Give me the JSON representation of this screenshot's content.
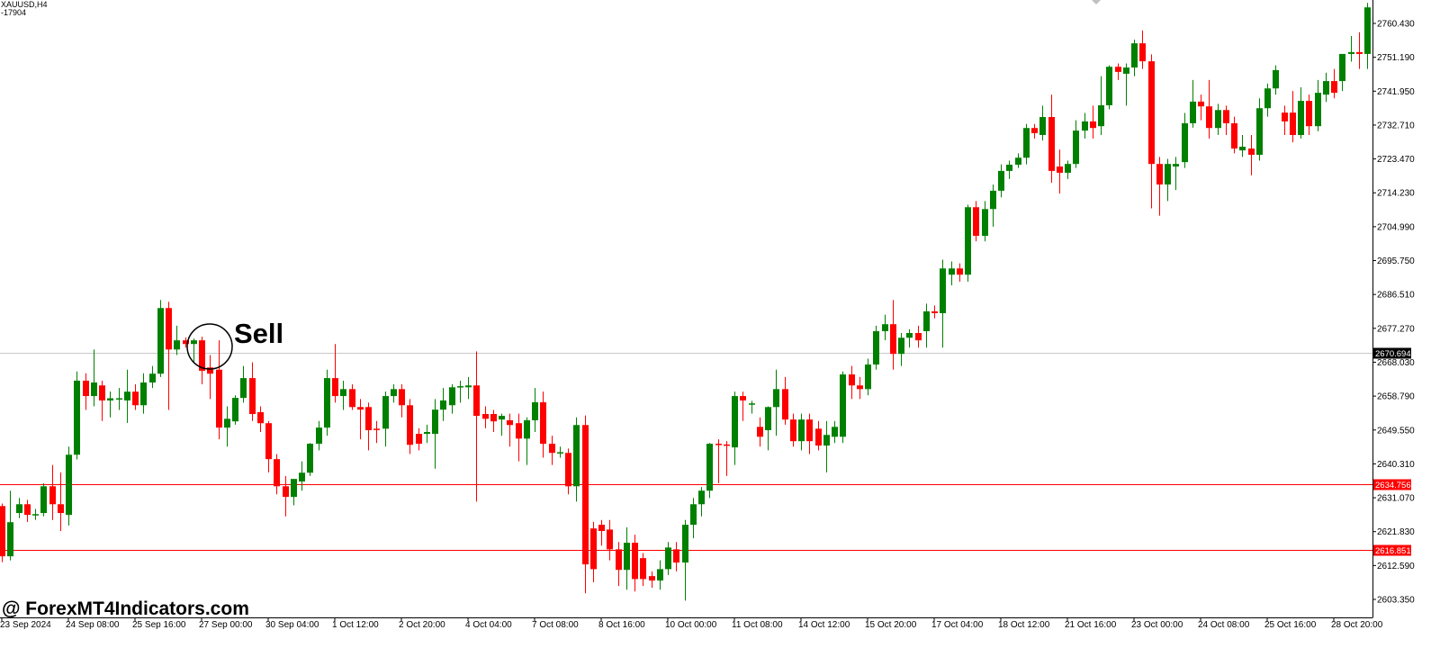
{
  "chart_data": {
    "type": "candlestick",
    "title": "XAUUSD,H4",
    "subtitle": "-17904",
    "annotation": "Sell",
    "watermark": "@ ForexMT4Indicators.com",
    "up_color": "#008000",
    "down_color": "#ff0000",
    "grid": false,
    "ylim": [
      2598.44,
      2766.81
    ],
    "yticks": [
      {
        "value": 2760.43,
        "label": "2760.430"
      },
      {
        "value": 2751.19,
        "label": "2751.190"
      },
      {
        "value": 2741.95,
        "label": "2741.950"
      },
      {
        "value": 2732.71,
        "label": "2732.710"
      },
      {
        "value": 2723.47,
        "label": "2723.470"
      },
      {
        "value": 2714.23,
        "label": "2714.230"
      },
      {
        "value": 2704.99,
        "label": "2704.990"
      },
      {
        "value": 2695.75,
        "label": "2695.750"
      },
      {
        "value": 2686.51,
        "label": "2686.510"
      },
      {
        "value": 2677.27,
        "label": "2677.270"
      },
      {
        "value": 2668.03,
        "label": "2668.030"
      },
      {
        "value": 2658.79,
        "label": "2658.790"
      },
      {
        "value": 2649.55,
        "label": "2649.550"
      },
      {
        "value": 2640.31,
        "label": "2640.310"
      },
      {
        "value": 2631.07,
        "label": "2631.070"
      },
      {
        "value": 2621.83,
        "label": "2621.830"
      },
      {
        "value": 2612.59,
        "label": "2612.590"
      },
      {
        "value": 2603.35,
        "label": "2603.350"
      }
    ],
    "price_lines": [
      {
        "value": 2670.694,
        "color": "#c8c8c8",
        "label_bg": "#000000"
      },
      {
        "value": 2634.756,
        "color": "#ff0000",
        "label_bg": "#ff0000"
      },
      {
        "value": 2616.851,
        "color": "#ff0000",
        "label_bg": "#ff0000"
      }
    ],
    "categories": [
      "23 Sep 2024",
      null,
      null,
      null,
      null,
      null,
      null,
      null,
      "24 Sep 08:00",
      null,
      null,
      null,
      null,
      null,
      null,
      null,
      "25 Sep 16:00",
      null,
      null,
      null,
      null,
      null,
      null,
      null,
      "27 Sep 00:00",
      null,
      null,
      null,
      null,
      null,
      null,
      null,
      "30 Sep 04:00",
      null,
      null,
      null,
      null,
      null,
      null,
      null,
      "1 Oct 12:00",
      null,
      null,
      null,
      null,
      null,
      null,
      null,
      "2 Oct 20:00",
      null,
      null,
      null,
      null,
      null,
      null,
      null,
      "4 Oct 04:00",
      null,
      null,
      null,
      null,
      null,
      null,
      null,
      "7 Oct 08:00",
      null,
      null,
      null,
      null,
      null,
      null,
      null,
      "8 Oct 16:00",
      null,
      null,
      null,
      null,
      null,
      null,
      null,
      "10 Oct 00:00",
      null,
      null,
      null,
      null,
      null,
      null,
      null,
      "11 Oct 08:00",
      null,
      null,
      null,
      null,
      null,
      null,
      null,
      "14 Oct 12:00",
      null,
      null,
      null,
      null,
      null,
      null,
      null,
      "15 Oct 20:00",
      null,
      null,
      null,
      null,
      null,
      null,
      null,
      "17 Oct 04:00",
      null,
      null,
      null,
      null,
      null,
      null,
      null,
      "18 Oct 12:00",
      null,
      null,
      null,
      null,
      null,
      null,
      null,
      "21 Oct 16:00",
      null,
      null,
      null,
      null,
      null,
      null,
      null,
      "23 Oct 00:00",
      null,
      null,
      null,
      null,
      null,
      null,
      null,
      "24 Oct 08:00",
      null,
      null,
      null,
      null,
      null,
      null,
      null,
      "25 Oct 16:00",
      null,
      null,
      null,
      null,
      null,
      null,
      null,
      "28 Oct 20:00",
      null,
      null,
      null,
      null
    ],
    "open": [
      2628.8,
      2615.1,
      2626.9,
      2629.3,
      2626.4,
      2626.9,
      2634.2,
      2629.3,
      2626.4,
      2642.8,
      2663.0,
      2658.8,
      2661.7,
      2657.6,
      2658.0,
      2657.6,
      2660.0,
      2656.3,
      2662.5,
      2664.9,
      2682.8,
      2671.5,
      2674.0,
      2673.0,
      2674.0,
      2666.6,
      2666.0,
      2650.2,
      2651.9,
      2658.3,
      2663.7,
      2654.4,
      2651.4,
      2641.6,
      2634.2,
      2631.3,
      2635.5,
      2637.9,
      2645.8,
      2650.2,
      2663.7,
      2658.8,
      2660.7,
      2655.8,
      2655.8,
      2649.9,
      2649.9,
      2658.8,
      2660.7,
      2656.3,
      2648.5,
      2648.5,
      2648.5,
      2655.1,
      2656.3,
      2661.2,
      2661.2,
      2661.7,
      2653.9,
      2653.9,
      2652.4,
      2652.2,
      2651.4,
      2647.2,
      2652.2,
      2657.1,
      2645.8,
      2643.3,
      2643.3,
      2634.2,
      2650.9,
      2622.7,
      2623.7,
      2622.4,
      2617.0,
      2611.4,
      2618.8,
      2614.6,
      2609.7,
      2608.5,
      2611.6,
      2617.0,
      2613.4,
      2623.7,
      2629.3,
      2633.0,
      2645.8,
      2645.6,
      2644.8,
      2658.8,
      2656.6,
      2650.4,
      2649.5,
      2655.8,
      2660.7,
      2652.4,
      2646.5,
      2652.4,
      2649.9,
      2645.3,
      2647.7,
      2647.7,
      2664.7,
      2661.7,
      2660.7,
      2667.4,
      2676.5,
      2678.4,
      2670.3,
      2674.7,
      2676.0,
      2676.5,
      2681.9,
      2681.4,
      2691.9,
      2693.6,
      2691.9,
      2710.3,
      2702.5,
      2709.8,
      2714.8,
      2720.2,
      2721.9,
      2723.8,
      2731.9,
      2730.0,
      2734.9,
      2721.4,
      2719.7,
      2722.1,
      2731.2,
      2733.7,
      2732.4,
      2738.1,
      2748.6,
      2746.7,
      2748.4,
      2755.0,
      2750.1,
      2722.1,
      2716.5,
      2721.4,
      2722.6,
      2733.2,
      2739.1,
      2737.8,
      2731.9,
      2736.8,
      2733.2,
      2725.8,
      2726.3,
      2724.6,
      2737.3,
      2742.7,
      2736.1,
      2736.1,
      2730.0,
      2739.3,
      2732.4,
      2741.0,
      2744.7,
      2744.7,
      2752.1,
      2752.6,
      2752.1
    ],
    "high": [
      2629.5,
      2633.0,
      2631.0,
      2630.5,
      2628.0,
      2635.0,
      2640.0,
      2638.0,
      2645.0,
      2665.5,
      2665.0,
      2671.5,
      2663.0,
      2660.0,
      2661.0,
      2666.0,
      2662.0,
      2665.0,
      2667.0,
      2685.0,
      2684.5,
      2678.0,
      2674.8,
      2674.5,
      2675.0,
      2670.0,
      2674.0,
      2656.0,
      2659.0,
      2667.0,
      2668.0,
      2656.0,
      2652.0,
      2643.0,
      2637.0,
      2636.0,
      2641.0,
      2646.0,
      2652.0,
      2666.0,
      2673.0,
      2663.0,
      2662.0,
      2658.0,
      2657.0,
      2652.0,
      2660.0,
      2662.0,
      2662.0,
      2658.0,
      2650.0,
      2651.0,
      2658.0,
      2661.0,
      2662.0,
      2663.0,
      2664.0,
      2671.0,
      2656.0,
      2655.0,
      2654.0,
      2654.0,
      2654.0,
      2653.0,
      2661.0,
      2660.0,
      2648.0,
      2645.0,
      2644.5,
      2653.0,
      2653.5,
      2624.5,
      2625.0,
      2625.0,
      2619.0,
      2623.0,
      2621.0,
      2616.0,
      2611.0,
      2614.0,
      2619.0,
      2619.0,
      2625.0,
      2631.0,
      2634.0,
      2646.0,
      2647.0,
      2646.5,
      2660.0,
      2660.0,
      2657.5,
      2653.0,
      2656.0,
      2666.0,
      2664.0,
      2654.0,
      2654.0,
      2654.0,
      2652.0,
      2652.0,
      2652.0,
      2665.5,
      2667.0,
      2664.0,
      2669.0,
      2678.0,
      2681.0,
      2685.0,
      2676.0,
      2677.0,
      2678.0,
      2684.0,
      2683.5,
      2696.0,
      2695.5,
      2695.0,
      2711.0,
      2712.0,
      2712.0,
      2716.5,
      2722.0,
      2723.0,
      2725.0,
      2733.0,
      2733.0,
      2738.0,
      2741.0,
      2726.0,
      2723.0,
      2734.0,
      2736.0,
      2738.0,
      2746.0,
      2749.0,
      2749.5,
      2749.5,
      2756.0,
      2758.5,
      2752.0,
      2724.0,
      2723.5,
      2724.0,
      2736.0,
      2745.0,
      2741.0,
      2745.0,
      2738.5,
      2738.0,
      2735.0,
      2730.0,
      2730.0,
      2740.0,
      2744.0,
      2749.0,
      2738.0,
      2742.0,
      2743.0,
      2741.0,
      2745.0,
      2747.0,
      2748.0,
      2752.0,
      2757.0,
      2758.0,
      2766.0
    ],
    "low": [
      2613.5,
      2614.0,
      2625.5,
      2624.5,
      2625.0,
      2626.0,
      2625.0,
      2622.0,
      2623.5,
      2641.5,
      2655.0,
      2656.0,
      2652.0,
      2653.0,
      2655.0,
      2651.5,
      2655.0,
      2654.0,
      2661.0,
      2664.0,
      2655.0,
      2670.0,
      2672.0,
      2668.0,
      2662.0,
      2658.0,
      2647.0,
      2645.0,
      2651.0,
      2657.0,
      2652.0,
      2649.0,
      2638.0,
      2632.0,
      2626.0,
      2629.0,
      2633.0,
      2637.0,
      2644.0,
      2648.0,
      2657.0,
      2655.0,
      2655.0,
      2647.0,
      2644.0,
      2646.0,
      2645.0,
      2657.0,
      2653.0,
      2643.0,
      2644.0,
      2646.0,
      2639.0,
      2652.0,
      2654.0,
      2657.0,
      2658.0,
      2630.0,
      2650.0,
      2649.0,
      2648.0,
      2645.0,
      2641.0,
      2640.0,
      2649.0,
      2642.0,
      2640.0,
      2642.0,
      2632.0,
      2630.0,
      2605.0,
      2608.0,
      2618.0,
      2614.0,
      2607.0,
      2606.0,
      2605.5,
      2607.0,
      2606.5,
      2606.0,
      2610.0,
      2611.0,
      2603.0,
      2620.0,
      2626.0,
      2631.0,
      2635.0,
      2637.0,
      2640.0,
      2652.0,
      2654.0,
      2645.0,
      2644.0,
      2648.0,
      2651.0,
      2645.0,
      2644.0,
      2643.0,
      2644.0,
      2638.0,
      2646.0,
      2646.0,
      2658.0,
      2658.0,
      2659.0,
      2666.0,
      2674.0,
      2666.0,
      2667.0,
      2672.0,
      2672.0,
      2672.0,
      2680.0,
      2672.0,
      2689.0,
      2690.0,
      2690.0,
      2701.0,
      2701.0,
      2705.0,
      2713.0,
      2718.0,
      2721.0,
      2722.0,
      2729.0,
      2728.5,
      2717.0,
      2714.0,
      2718.0,
      2721.0,
      2729.0,
      2729.0,
      2730.0,
      2737.0,
      2745.0,
      2738.0,
      2746.0,
      2748.0,
      2710.0,
      2708.0,
      2712.0,
      2715.0,
      2721.0,
      2732.0,
      2734.0,
      2729.0,
      2730.0,
      2730.0,
      2725.0,
      2724.0,
      2719.0,
      2723.0,
      2735.0,
      2741.0,
      2730.0,
      2728.0,
      2729.0,
      2730.0,
      2731.0,
      2739.0,
      2740.0,
      2742.0,
      2750.0,
      2748.0,
      2748.0
    ],
    "close": [
      2615.1,
      2624.4,
      2629.3,
      2626.4,
      2626.6,
      2634.2,
      2629.3,
      2626.9,
      2642.8,
      2663.0,
      2658.8,
      2662.5,
      2657.6,
      2658.2,
      2658.2,
      2660.0,
      2656.3,
      2662.5,
      2664.9,
      2682.8,
      2671.5,
      2674.0,
      2673.0,
      2674.0,
      2665.7,
      2664.9,
      2650.2,
      2652.6,
      2658.3,
      2663.7,
      2653.9,
      2651.4,
      2641.6,
      2634.2,
      2631.3,
      2636.2,
      2637.9,
      2645.8,
      2650.2,
      2663.7,
      2658.8,
      2660.7,
      2655.8,
      2655.1,
      2649.5,
      2649.7,
      2658.8,
      2660.7,
      2656.3,
      2645.5,
      2645.8,
      2649.0,
      2655.1,
      2657.6,
      2661.2,
      2661.5,
      2661.7,
      2653.4,
      2652.6,
      2651.9,
      2653.4,
      2650.9,
      2647.2,
      2652.2,
      2657.1,
      2645.8,
      2643.3,
      2643.5,
      2634.2,
      2650.9,
      2612.9,
      2611.6,
      2622.0,
      2617.0,
      2611.4,
      2618.8,
      2608.9,
      2608.9,
      2608.5,
      2611.6,
      2617.5,
      2613.4,
      2623.7,
      2629.3,
      2633.0,
      2645.8,
      2645.6,
      2645.3,
      2658.8,
      2657.6,
      2656.8,
      2647.7,
      2655.8,
      2660.7,
      2652.4,
      2646.5,
      2652.4,
      2646.5,
      2645.3,
      2648.2,
      2650.4,
      2664.7,
      2661.7,
      2660.7,
      2667.4,
      2676.5,
      2678.4,
      2670.3,
      2674.7,
      2676.0,
      2674.0,
      2681.9,
      2681.4,
      2693.6,
      2693.6,
      2691.9,
      2710.3,
      2702.5,
      2709.8,
      2714.8,
      2720.2,
      2721.9,
      2723.8,
      2731.9,
      2730.5,
      2734.9,
      2720.2,
      2719.7,
      2722.1,
      2731.2,
      2733.7,
      2731.9,
      2738.1,
      2748.6,
      2747.2,
      2748.4,
      2755.0,
      2750.1,
      2722.1,
      2716.5,
      2722.1,
      2722.1,
      2733.2,
      2739.1,
      2737.8,
      2731.9,
      2736.8,
      2733.2,
      2726.3,
      2726.8,
      2724.6,
      2737.3,
      2742.7,
      2747.7,
      2733.7,
      2730.0,
      2739.3,
      2732.4,
      2741.5,
      2744.7,
      2741.5,
      2752.1,
      2752.6,
      2752.1,
      2764.8
    ]
  }
}
